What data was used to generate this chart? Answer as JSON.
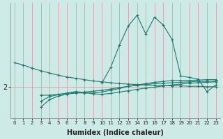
{
  "bg_color": "#ceeae6",
  "line_color": "#1a7a6e",
  "grid_color_v": "#d9a8a8",
  "grid_color_h": "#d9a8a8",
  "xlabel": "Humidex (Indice chaleur)",
  "ytick_val": 2,
  "ytick_label": "2",
  "xlim": [
    -0.5,
    23.5
  ],
  "ylim": [
    1.3,
    3.9
  ],
  "series": [
    {
      "x": [
        0,
        1,
        2,
        3,
        4,
        5,
        6,
        7,
        8,
        9,
        10,
        11,
        12,
        13,
        14,
        15,
        16,
        17,
        18,
        19,
        20,
        21,
        22,
        23
      ],
      "y": [
        2.55,
        2.5,
        2.43,
        2.37,
        2.32,
        2.27,
        2.23,
        2.2,
        2.17,
        2.14,
        2.12,
        2.1,
        2.08,
        2.07,
        2.06,
        2.05,
        2.04,
        2.04,
        2.03,
        2.03,
        2.02,
        2.02,
        2.01,
        2.01
      ]
    },
    {
      "x": [
        3,
        4,
        5,
        6,
        7,
        8,
        9,
        10,
        11,
        12,
        13,
        14,
        15,
        16,
        17,
        18,
        19,
        20,
        21,
        22,
        23
      ],
      "y": [
        1.82,
        1.82,
        1.84,
        1.86,
        1.88,
        1.89,
        1.91,
        1.93,
        1.96,
        1.99,
        2.02,
        2.04,
        2.06,
        2.08,
        2.09,
        2.1,
        2.11,
        2.12,
        2.13,
        2.13,
        2.14
      ]
    },
    {
      "x": [
        3,
        4,
        5,
        6,
        7,
        8,
        9,
        10,
        11,
        12,
        13,
        14,
        15,
        16,
        17,
        18,
        19,
        20,
        21,
        22,
        23
      ],
      "y": [
        1.68,
        1.79,
        1.83,
        1.87,
        1.9,
        1.88,
        1.85,
        1.84,
        1.86,
        1.89,
        1.92,
        1.95,
        1.98,
        2.0,
        2.03,
        2.05,
        2.07,
        2.09,
        2.1,
        2.11,
        2.12
      ]
    },
    {
      "x": [
        3,
        4,
        5,
        6,
        7,
        8,
        9,
        10,
        11,
        12,
        13,
        14,
        15,
        16,
        17,
        18,
        19,
        20,
        21,
        22,
        23
      ],
      "y": [
        1.55,
        1.72,
        1.8,
        1.84,
        1.87,
        1.87,
        1.87,
        1.89,
        1.93,
        1.97,
        2.02,
        2.05,
        2.08,
        2.11,
        2.13,
        2.15,
        2.15,
        2.15,
        2.16,
        2.17,
        2.17
      ]
    },
    {
      "x": [
        10,
        11,
        12,
        13,
        14,
        15,
        16,
        17,
        18,
        19,
        20,
        21,
        22,
        23
      ],
      "y": [
        2.1,
        2.45,
        2.95,
        3.38,
        3.62,
        3.2,
        3.58,
        3.4,
        3.08,
        2.25,
        2.22,
        2.18,
        1.9,
        2.05
      ]
    }
  ]
}
